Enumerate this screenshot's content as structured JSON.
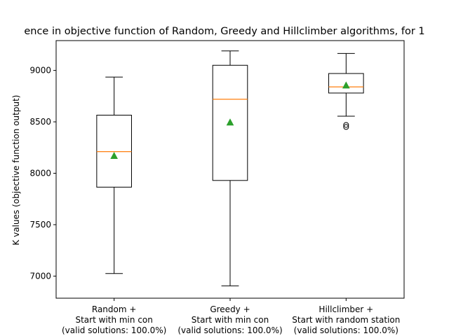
{
  "chart_data": {
    "type": "box",
    "title": "ence in objective function of Random, Greedy and Hillclimber algorithms, for 1",
    "xlabel": "",
    "ylabel": "K values (objective function output)",
    "ylim": [
      6785,
      9290
    ],
    "yticks": [
      7000,
      7500,
      8000,
      8500,
      9000
    ],
    "grid": false,
    "categories": [
      [
        "Random +",
        "Start with min con",
        "(valid solutions: 100.0%)"
      ],
      [
        "Greedy +",
        "Start with min con",
        "(valid solutions: 100.0%)"
      ],
      [
        "Hillclimber +",
        "Start with random station",
        "(valid solutions: 100.0%)"
      ]
    ],
    "boxes": [
      {
        "whislo": 7025,
        "q1": 7865,
        "med": 8210,
        "q3": 8565,
        "whishi": 8935,
        "mean": 8170,
        "fliers": []
      },
      {
        "whislo": 6905,
        "q1": 7930,
        "med": 8720,
        "q3": 9050,
        "whishi": 9190,
        "mean": 8495,
        "fliers": []
      },
      {
        "whislo": 8555,
        "q1": 8780,
        "med": 8840,
        "q3": 8970,
        "whishi": 9165,
        "mean": 8855,
        "fliers": [
          8470,
          8450
        ]
      }
    ],
    "colors": {
      "box": "#000000",
      "median": "#ff7f0e",
      "mean": "#2ca02c"
    }
  }
}
